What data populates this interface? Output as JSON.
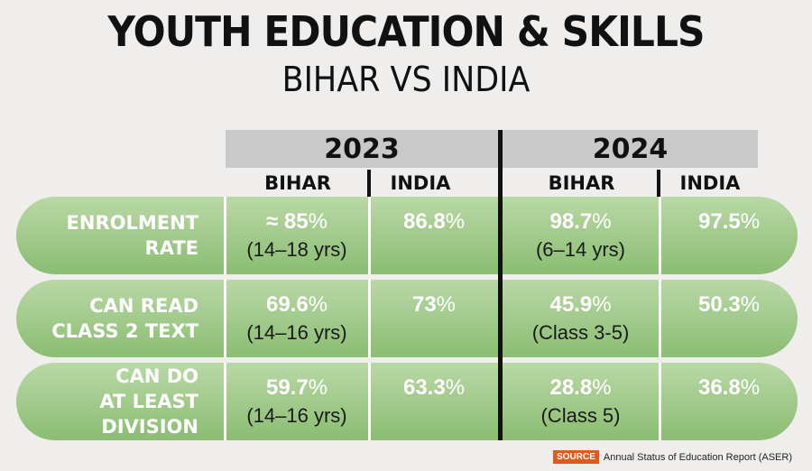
{
  "header": {
    "title": "YOUTH EDUCATION & SKILLS",
    "subtitle": "BIHAR VS INDIA"
  },
  "years": [
    "2023",
    "2024"
  ],
  "columns": [
    "BIHAR",
    "INDIA",
    "BIHAR",
    "INDIA"
  ],
  "rows": [
    {
      "label_lines": [
        "ENROLMENT RATE"
      ],
      "cells": [
        {
          "value": "≈ 85",
          "unit": "%",
          "sub": "(14–18 yrs)"
        },
        {
          "value": "86.8",
          "unit": "%",
          "sub": ""
        },
        {
          "value": "98.7",
          "unit": "%",
          "sub": "(6–14 yrs)"
        },
        {
          "value": "97.5",
          "unit": "%",
          "sub": ""
        }
      ]
    },
    {
      "label_lines": [
        "CAN READ",
        "CLASS 2 TEXT"
      ],
      "cells": [
        {
          "value": "69.6",
          "unit": "%",
          "sub": "(14–16 yrs)"
        },
        {
          "value": "73",
          "unit": "%",
          "sub": ""
        },
        {
          "value": "45.9",
          "unit": "%",
          "sub": "(Class 3-5)"
        },
        {
          "value": "50.3",
          "unit": "%",
          "sub": ""
        }
      ]
    },
    {
      "label_lines": [
        "CAN DO",
        "AT LEAST DIVISION"
      ],
      "cells": [
        {
          "value": "59.7",
          "unit": "%",
          "sub": "(14–16 yrs)"
        },
        {
          "value": "63.3",
          "unit": "%",
          "sub": ""
        },
        {
          "value": "28.8",
          "unit": "%",
          "sub": "(Class 5)"
        },
        {
          "value": "36.8",
          "unit": "%",
          "sub": ""
        }
      ]
    }
  ],
  "source": {
    "tag": "SOURCE",
    "text": "Annual Status of Education Report (ASER)"
  },
  "colors": {
    "row_top": "#b9d8a6",
    "row_bottom": "#8bbd72",
    "year_bar": "#c9c9c9",
    "source_tag": "#e05a1e"
  },
  "chart_data": {
    "type": "table",
    "title": "YOUTH EDUCATION & SKILLS",
    "subtitle": "BIHAR VS INDIA",
    "column_groups": [
      "2023",
      "2024"
    ],
    "columns": [
      "BIHAR",
      "INDIA",
      "BIHAR",
      "INDIA"
    ],
    "rows": [
      {
        "label": "ENROLMENT RATE",
        "values": [
          "≈ 85%",
          "86.8%",
          "98.7%",
          "97.5%"
        ],
        "notes": [
          "(14–18 yrs)",
          "",
          "(6–14 yrs)",
          ""
        ]
      },
      {
        "label": "CAN READ CLASS 2 TEXT",
        "values": [
          "69.6%",
          "73%",
          "45.9%",
          "50.3%"
        ],
        "notes": [
          "(14–16 yrs)",
          "",
          "(Class 3-5)",
          ""
        ]
      },
      {
        "label": "CAN DO AT LEAST DIVISION",
        "values": [
          "59.7%",
          "63.3%",
          "28.8%",
          "36.8%"
        ],
        "notes": [
          "(14–16 yrs)",
          "",
          "(Class 5)",
          ""
        ]
      }
    ]
  }
}
